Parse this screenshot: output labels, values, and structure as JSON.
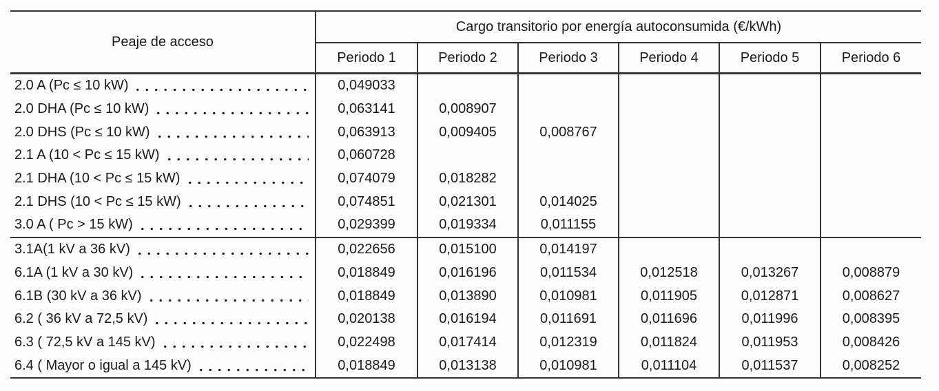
{
  "page": {
    "background_color": "#fcfcfc",
    "line_color": "#343434",
    "text_color": "#1b1b1b"
  },
  "table": {
    "corner_header": "Peaje de acceso",
    "group_header": "Cargo transitorio por energía autoconsumida (€/kWh)",
    "period_headers": [
      "Periodo 1",
      "Periodo 2",
      "Periodo 3",
      "Periodo 4",
      "Periodo 5",
      "Periodo 6"
    ],
    "groups": [
      {
        "rows": [
          {
            "label": "2.0 A (Pc ≤ 10 kW)",
            "values": [
              "0,049033",
              "",
              "",
              "",
              "",
              ""
            ]
          },
          {
            "label": "2.0 DHA (Pc ≤ 10 kW)",
            "values": [
              "0,063141",
              "0,008907",
              "",
              "",
              "",
              ""
            ]
          },
          {
            "label": "2.0 DHS (Pc ≤ 10 kW)",
            "values": [
              "0,063913",
              "0,009405",
              "0,008767",
              "",
              "",
              ""
            ]
          },
          {
            "label": "2.1 A (10 < Pc ≤ 15 kW)",
            "values": [
              "0,060728",
              "",
              "",
              "",
              "",
              ""
            ]
          },
          {
            "label": "2.1 DHA (10 < Pc ≤ 15 kW)",
            "values": [
              "0,074079",
              "0,018282",
              "",
              "",
              "",
              ""
            ]
          },
          {
            "label": "2.1 DHS (10 < Pc ≤ 15 kW)",
            "values": [
              "0,074851",
              "0,021301",
              "0,014025",
              "",
              "",
              ""
            ]
          },
          {
            "label": "3.0 A ( Pc > 15 kW)",
            "values": [
              "0,029399",
              "0,019334",
              "0,011155",
              "",
              "",
              ""
            ]
          }
        ]
      },
      {
        "rows": [
          {
            "label": "3.1A(1 kV a 36 kV)",
            "values": [
              "0,022656",
              "0,015100",
              "0,014197",
              "",
              "",
              ""
            ]
          },
          {
            "label": "6.1A (1 kV a 30 kV)",
            "values": [
              "0,018849",
              "0,016196",
              "0,011534",
              "0,012518",
              "0,013267",
              "0,008879"
            ]
          },
          {
            "label": "6.1B (30 kV a 36 kV)",
            "values": [
              "0,018849",
              "0,013890",
              "0,010981",
              "0,011905",
              "0,012871",
              "0,008627"
            ]
          },
          {
            "label": "6.2 ( 36 kV a 72,5 kV)",
            "values": [
              "0,020138",
              "0,016194",
              "0,011691",
              "0,011696",
              "0,011996",
              "0,008395"
            ]
          },
          {
            "label": "6.3 ( 72,5 kV a 145 kV)",
            "values": [
              "0,022498",
              "0,017414",
              "0,012319",
              "0,011824",
              "0,011953",
              "0,008426"
            ]
          },
          {
            "label": "6.4 ( Mayor o igual a 145 kV)",
            "values": [
              "0,018849",
              "0,013138",
              "0,010981",
              "0,011104",
              "0,011537",
              "0,008252"
            ]
          }
        ]
      }
    ]
  }
}
